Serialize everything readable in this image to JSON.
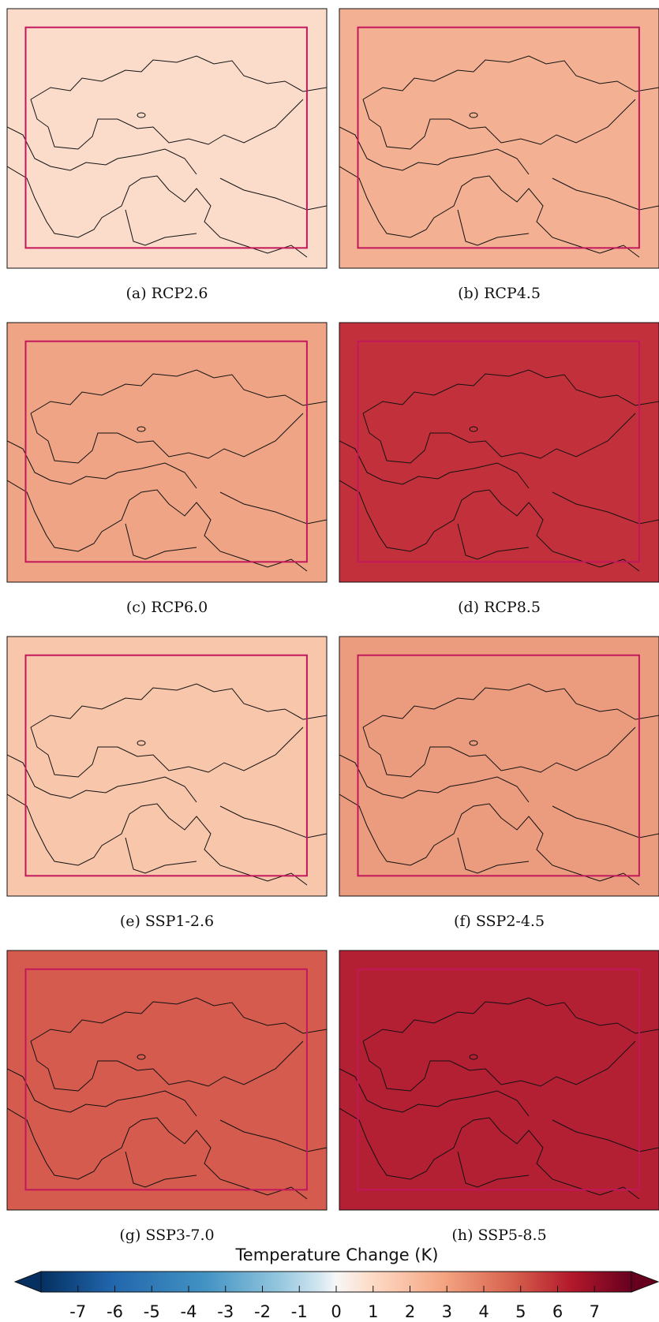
{
  "panels": [
    {
      "label": "(a) RCP2.6",
      "color": "#fbdccb"
    },
    {
      "label": "(b) RCP4.5",
      "color": "#f3b093"
    },
    {
      "label": "(c) RCP6.0",
      "color": "#eea485"
    },
    {
      "label": "(d) RCP8.5",
      "color": "#c2313b"
    },
    {
      "label": "(e) SSP1-2.6",
      "color": "#f8c6ab"
    },
    {
      "label": "(f) SSP2-4.5",
      "color": "#ec9c7e"
    },
    {
      "label": "(g) SSP3-7.0",
      "color": "#d45b4d"
    },
    {
      "label": "(h) SSP5-8.5",
      "color": "#b31f33"
    }
  ],
  "colorbar": {
    "title": "Temperature Change (K)",
    "clim": [
      -8,
      8
    ],
    "ticks": [
      -7,
      -6,
      -5,
      -4,
      -3,
      -2,
      -1,
      0,
      1,
      2,
      3,
      4,
      5,
      6,
      7
    ]
  }
}
